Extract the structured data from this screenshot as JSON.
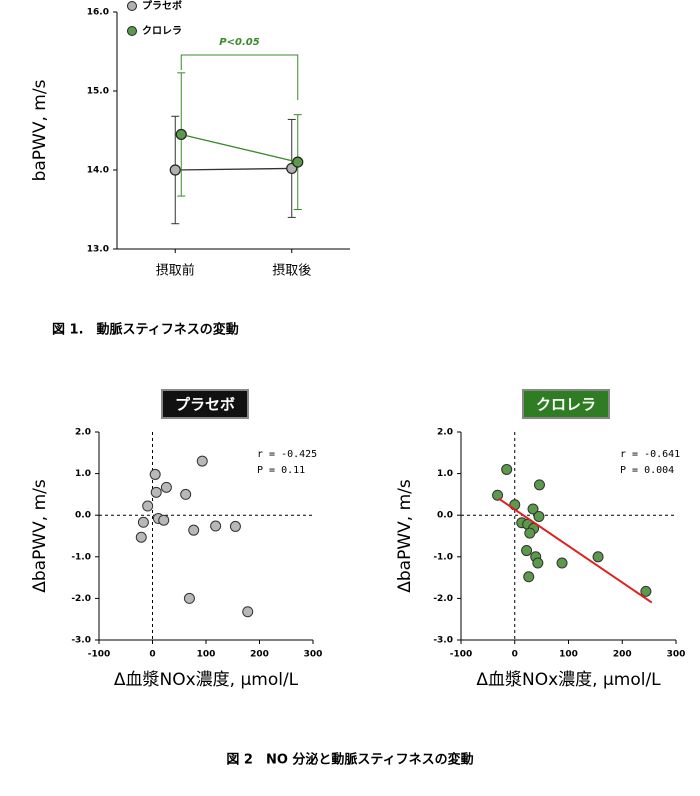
{
  "captions": [
    "図 1.　動脈スティフネスの変動",
    "図 2　NO 分泌と動脈スティフネスの変動"
  ],
  "chart_data": [
    {
      "type": "line",
      "categories": [
        "摂取前",
        "摂取後"
      ],
      "y_label": "baPWV, m/s",
      "ylim": [
        13,
        16
      ],
      "yticks": [
        {
          "value": 13,
          "label": "13.0"
        },
        {
          "value": 14,
          "label": "14.0"
        },
        {
          "value": 15,
          "label": "15.0"
        },
        {
          "value": 16,
          "label": "16.0"
        }
      ],
      "series": [
        {
          "name": "プラセボ",
          "color": "#333333",
          "marker_color": "#b0b0b0",
          "values": [
            14.0,
            14.02
          ],
          "errors": [
            0.68,
            0.62
          ]
        },
        {
          "name": "クロレラ",
          "color": "#3a8a2a",
          "marker_color": "#5a9a4a",
          "values": [
            14.45,
            14.1
          ],
          "errors": [
            0.78,
            0.6
          ]
        }
      ],
      "annotation": "P<0.05"
    },
    {
      "type": "scatter",
      "title": "プラセボ",
      "title_color": "#111111",
      "x_label": "Δ血漿NOx濃度, μmol/L",
      "y_label": "ΔbaPWV, m/s",
      "xlim": [
        -100,
        300
      ],
      "xticks": [
        -100,
        0,
        100,
        200,
        300
      ],
      "ylim": [
        -3,
        2
      ],
      "yticks": [
        {
          "value": 2,
          "label": "2.0"
        },
        {
          "value": 1,
          "label": "1.0"
        },
        {
          "value": 0,
          "label": "0.0"
        },
        {
          "value": -1,
          "label": "-1.0"
        },
        {
          "value": -2,
          "label": "-2.0"
        },
        {
          "value": -3,
          "label": "-3.0"
        }
      ],
      "color": "#b8b8b8",
      "x": [
        5,
        93,
        26,
        7,
        -9,
        -17,
        -21,
        11,
        21,
        62,
        77,
        118,
        155,
        69,
        178
      ],
      "y": [
        0.98,
        1.3,
        0.67,
        0.55,
        0.22,
        -0.17,
        -0.53,
        -0.08,
        -0.12,
        0.5,
        -0.36,
        -0.26,
        -0.27,
        -2.0,
        -2.32
      ],
      "annotations": [
        "r = -0.425",
        "P = 0.11"
      ]
    },
    {
      "type": "scatter",
      "title": "クロレラ",
      "title_color": "#2e7d22",
      "x_label": "Δ血漿NOx濃度, μmol/L",
      "y_label": "ΔbaPWV, m/s",
      "xlim": [
        -100,
        300
      ],
      "xticks": [
        -100,
        0,
        100,
        200,
        300
      ],
      "ylim": [
        -3,
        2
      ],
      "yticks": [
        {
          "value": 2,
          "label": "2.0"
        },
        {
          "value": 1,
          "label": "1.0"
        },
        {
          "value": 0,
          "label": "0.0"
        },
        {
          "value": -1,
          "label": "-1.0"
        },
        {
          "value": -2,
          "label": "-2.0"
        },
        {
          "value": -3,
          "label": "-3.0"
        }
      ],
      "color": "#5a9a4a",
      "x": [
        -15,
        -32,
        0,
        46,
        34,
        45,
        13,
        24,
        35,
        28,
        22,
        39,
        43,
        88,
        155,
        26,
        244
      ],
      "y": [
        1.1,
        0.48,
        0.25,
        0.73,
        0.15,
        -0.03,
        -0.18,
        -0.22,
        -0.32,
        -0.43,
        -0.85,
        -1.0,
        -1.15,
        -1.15,
        -1.0,
        -1.48,
        -1.83
      ],
      "fit": {
        "x": [
          -30,
          255
        ],
        "y": [
          0.4,
          -2.1
        ],
        "color": "#e02020"
      },
      "annotations": [
        "r = -0.641",
        "P = 0.004"
      ]
    }
  ]
}
